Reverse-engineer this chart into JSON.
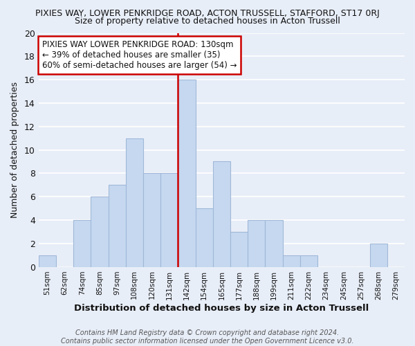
{
  "title": "PIXIES WAY, LOWER PENKRIDGE ROAD, ACTON TRUSSELL, STAFFORD, ST17 0RJ",
  "subtitle": "Size of property relative to detached houses in Acton Trussell",
  "xlabel": "Distribution of detached houses by size in Acton Trussell",
  "ylabel": "Number of detached properties",
  "bin_labels": [
    "51sqm",
    "62sqm",
    "74sqm",
    "85sqm",
    "97sqm",
    "108sqm",
    "120sqm",
    "131sqm",
    "142sqm",
    "154sqm",
    "165sqm",
    "177sqm",
    "188sqm",
    "199sqm",
    "211sqm",
    "222sqm",
    "234sqm",
    "245sqm",
    "257sqm",
    "268sqm",
    "279sqm"
  ],
  "bin_values": [
    1,
    0,
    4,
    6,
    7,
    11,
    8,
    8,
    16,
    5,
    9,
    3,
    4,
    4,
    1,
    1,
    0,
    0,
    0,
    2,
    0
  ],
  "bar_color": "#c5d8f0",
  "bar_edge_color": "#a0b8d8",
  "vline_x_index": 7,
  "vline_color": "#cc0000",
  "annotation_text": "PIXIES WAY LOWER PENKRIDGE ROAD: 130sqm\n← 39% of detached houses are smaller (35)\n60% of semi-detached houses are larger (54) →",
  "annotation_box_color": "#ffffff",
  "annotation_box_edge": "#cc0000",
  "ylim": [
    0,
    20
  ],
  "yticks": [
    0,
    2,
    4,
    6,
    8,
    10,
    12,
    14,
    16,
    18,
    20
  ],
  "footer": "Contains HM Land Registry data © Crown copyright and database right 2024.\nContains public sector information licensed under the Open Government Licence v3.0.",
  "bg_color": "#e8eef8",
  "grid_color": "#ffffff"
}
